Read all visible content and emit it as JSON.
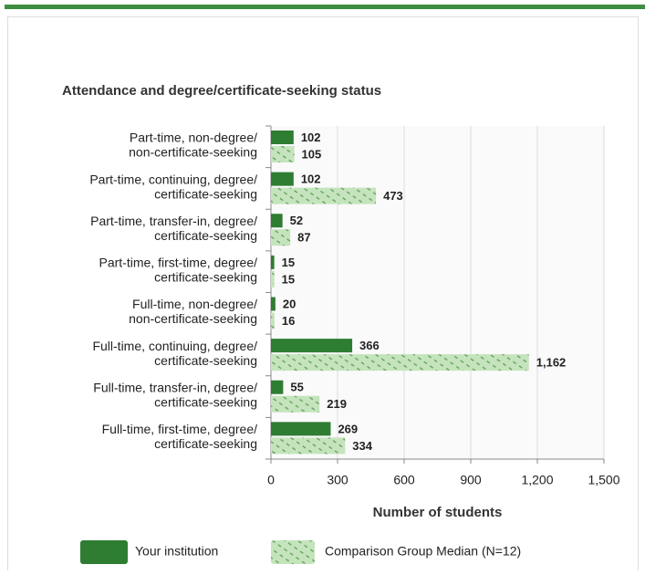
{
  "chart_data": {
    "type": "bar",
    "orientation": "horizontal",
    "title": "Attendance and degree/certificate-seeking status",
    "categories": [
      [
        "Part-time, non-degree/",
        "non-certificate-seeking"
      ],
      [
        "Part-time, continuing, degree/",
        "certificate-seeking"
      ],
      [
        "Part-time, transfer-in, degree/",
        "certificate-seeking"
      ],
      [
        "Part-time, first-time, degree/",
        "certificate-seeking"
      ],
      [
        "Full-time, non-degree/",
        "non-certificate-seeking"
      ],
      [
        "Full-time, continuing, degree/",
        "certificate-seeking"
      ],
      [
        "Full-time, transfer-in, degree/",
        "certificate-seeking"
      ],
      [
        "Full-time, first-time, degree/",
        "certificate-seeking"
      ]
    ],
    "series": [
      {
        "name": "Your institution",
        "color": "#2e7d32",
        "values": [
          102,
          102,
          52,
          15,
          20,
          366,
          55,
          269
        ]
      },
      {
        "name": "Comparison Group Median (N=12)",
        "color": "#c5e4bd",
        "hatched": true,
        "values": [
          105,
          473,
          87,
          15,
          16,
          1162,
          219,
          334
        ],
        "value_labels": [
          "105",
          "473",
          "87",
          "15",
          "16",
          "1,162",
          "219",
          "334"
        ]
      }
    ],
    "xlabel": "Number of students",
    "xlim": [
      0,
      1500
    ],
    "xticks": [
      0,
      300,
      600,
      900,
      {
        "value": 1200,
        "label": "1,200"
      },
      {
        "value": 1500,
        "label": "1,500"
      }
    ],
    "grid": true,
    "legend": "bottom"
  }
}
